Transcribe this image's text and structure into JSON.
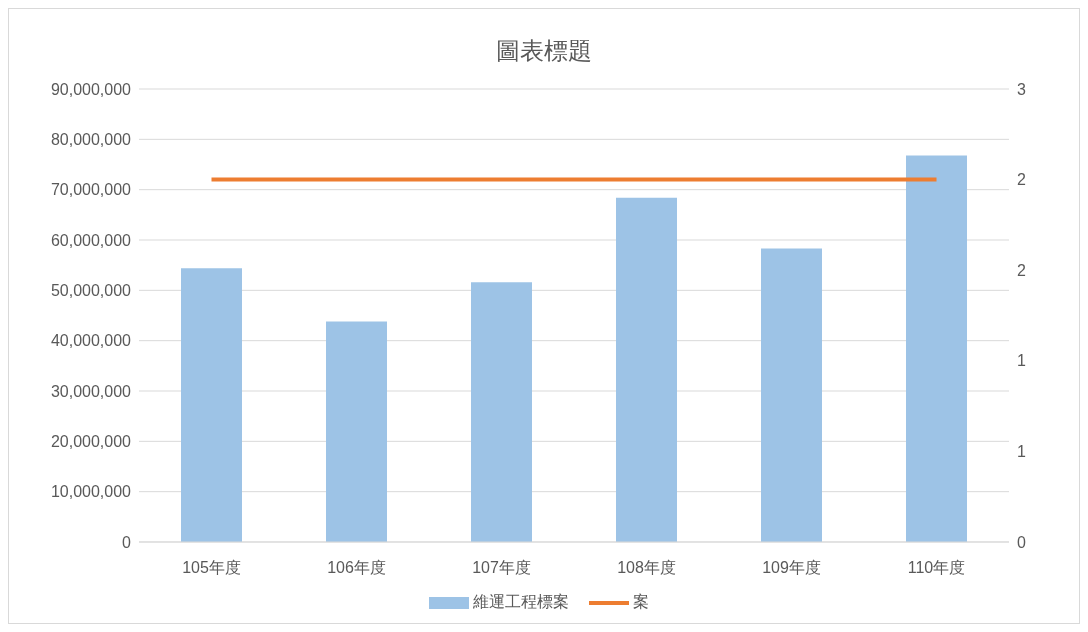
{
  "chart_data": {
    "type": "bar",
    "title": "圖表標題",
    "categories": [
      "105年度",
      "106年度",
      "107年度",
      "108年度",
      "109年度",
      "110年度"
    ],
    "series": [
      {
        "name": "維運工程標案",
        "color": "#9dc3e6",
        "values": [
          54400000,
          43800000,
          51600000,
          68400000,
          58300000,
          76800000
        ]
      },
      {
        "name": "案",
        "type": "line",
        "axis": "y2",
        "color": "#ed7d31",
        "values": [
          2.4,
          2.4,
          2.4,
          2.4,
          2.4,
          2.4
        ]
      }
    ],
    "ylim": [
      0,
      90000000
    ],
    "yticks": [
      0,
      {
        "value": 10000000,
        "label": "10,000,000"
      },
      {
        "value": 20000000,
        "label": "20,000,000"
      },
      {
        "value": 30000000,
        "label": "30,000,000"
      },
      {
        "value": 40000000,
        "label": "40,000,000"
      },
      {
        "value": 50000000,
        "label": "50,000,000"
      },
      {
        "value": 60000000,
        "label": "60,000,000"
      },
      {
        "value": 70000000,
        "label": "70,000,000"
      },
      {
        "value": 80000000,
        "label": "80,000,000"
      },
      {
        "value": 90000000,
        "label": "90,000,000"
      }
    ],
    "y2lim": [
      0,
      3
    ],
    "y2ticks": [
      0,
      {
        "value": 0.6,
        "label": "1"
      },
      {
        "value": 1.2,
        "label": "1"
      },
      {
        "value": 1.8,
        "label": "2"
      },
      {
        "value": 2.4,
        "label": "2"
      },
      3
    ],
    "grid": "y",
    "legend": "bottom",
    "marker": "none"
  }
}
